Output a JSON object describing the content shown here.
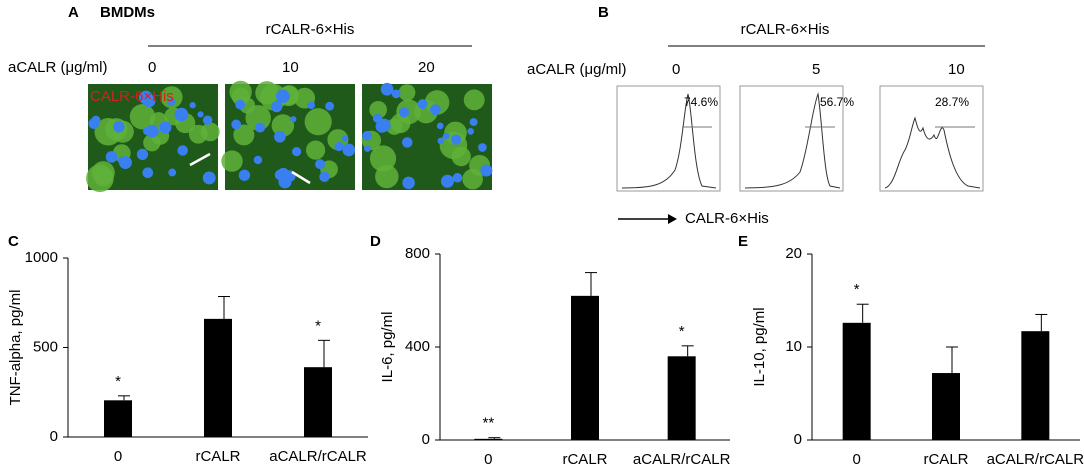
{
  "panel_a": {
    "label": "A",
    "title": "BMDMs",
    "treatment": "rCALR-6×His",
    "dose_label": "aCALR (μg/ml)",
    "doses": [
      "0",
      "10",
      "20"
    ],
    "stain_label": "CALR-6×His"
  },
  "panel_b": {
    "label": "B",
    "treatment": "rCALR-6×His",
    "dose_label": "aCALR (μg/ml)",
    "doses": [
      "0",
      "5",
      "10"
    ],
    "percent_labels": [
      "74.6%",
      "56.7%",
      "28.7%"
    ],
    "axis_label": "CALR-6×His"
  },
  "chart_data": [
    {
      "type": "bar",
      "panel": "C",
      "y_label": "TNF-alpha, pg/ml",
      "categories": [
        "0",
        "rCALR",
        "aCALR/rCALR"
      ],
      "values": [
        205,
        660,
        390
      ],
      "errors": [
        25,
        125,
        150
      ],
      "significance": [
        "*",
        null,
        "*"
      ],
      "color": "#000000",
      "ylim": [
        0,
        1000
      ],
      "yticks": [
        0,
        500,
        1000
      ]
    },
    {
      "type": "bar",
      "panel": "D",
      "y_label": "IL-6, pg/ml",
      "categories": [
        "0",
        "rCALR",
        "aCALR/rCALR"
      ],
      "values": [
        5,
        620,
        360
      ],
      "errors": [
        5,
        100,
        45
      ],
      "significance": [
        "**",
        null,
        "*"
      ],
      "color": "#000000",
      "ylim": [
        0,
        800
      ],
      "yticks": [
        0,
        400,
        800
      ]
    },
    {
      "type": "bar",
      "panel": "E",
      "y_label": "IL-10, pg/ml",
      "categories": [
        "0",
        "rCALR",
        "aCALR/rCALR"
      ],
      "values": [
        12.6,
        7.2,
        11.7
      ],
      "errors": [
        2,
        2.8,
        1.8
      ],
      "significance": [
        "*",
        null,
        null
      ],
      "color": "#000000",
      "ylim": [
        0,
        20
      ],
      "yticks": [
        0,
        10,
        20
      ]
    }
  ]
}
